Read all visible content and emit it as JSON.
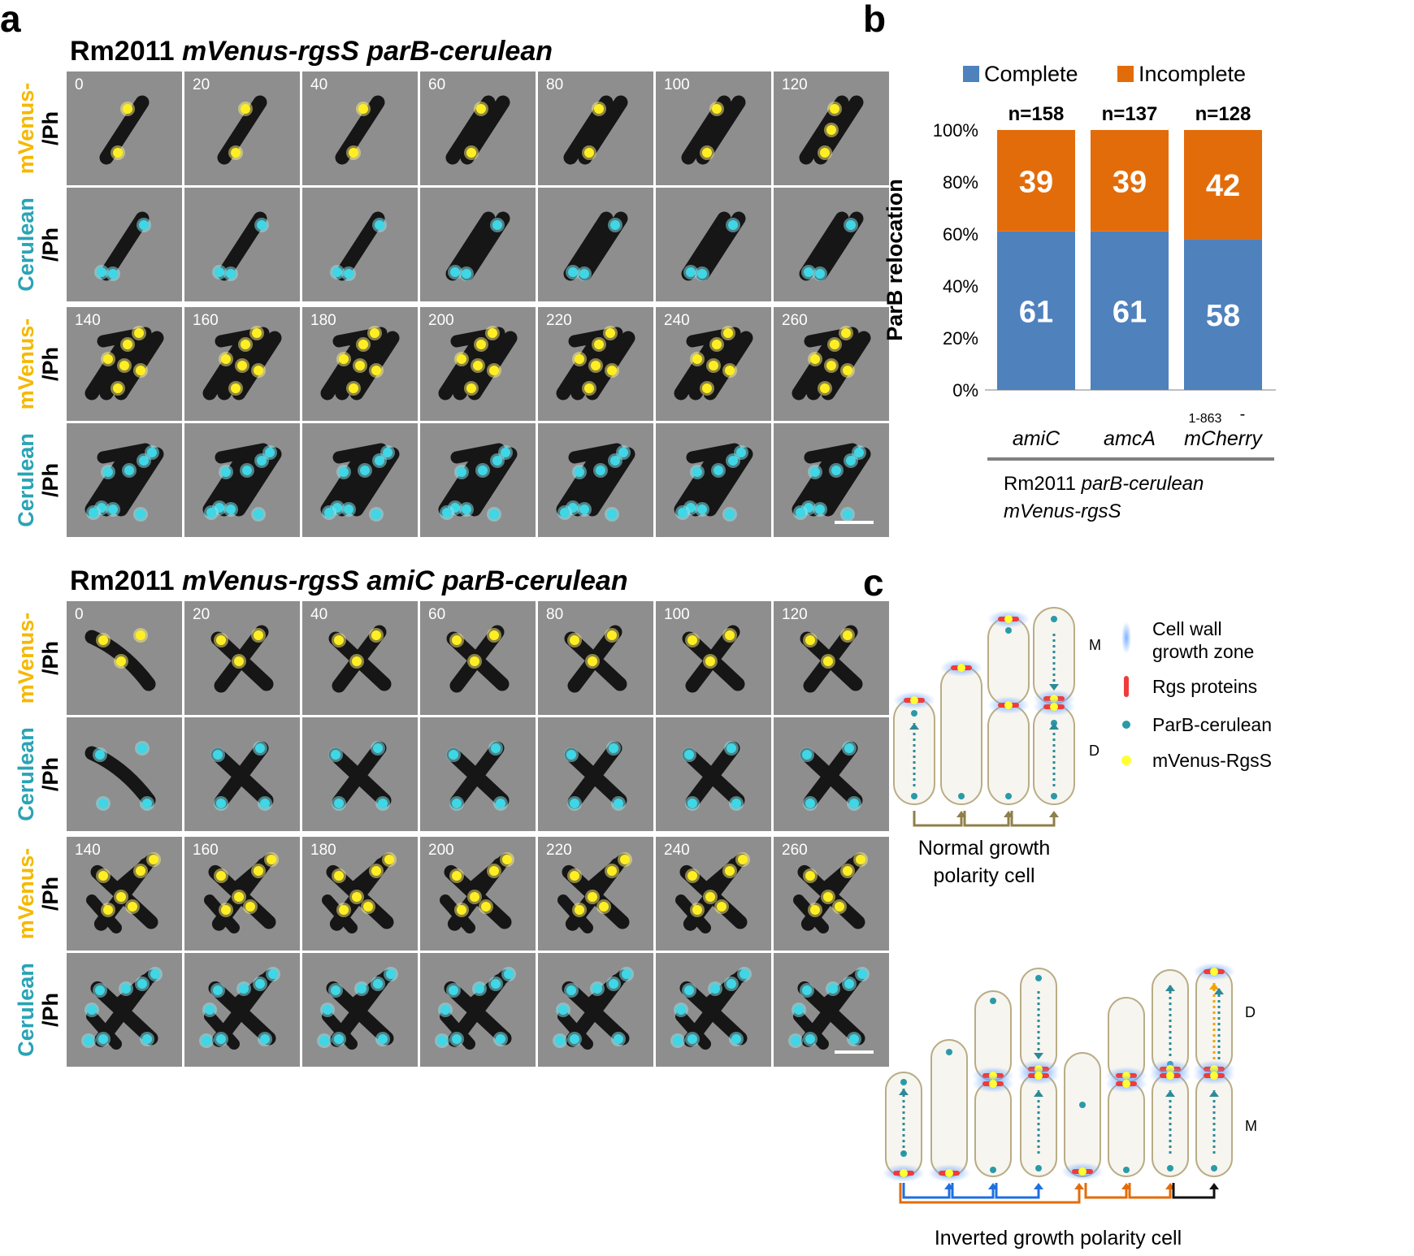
{
  "panel_a": {
    "letter": "a",
    "blocks": [
      {
        "title_plain": "Rm2011 ",
        "title_italic": "mVenus-rgsS parB-cerulean",
        "times_top": [
          "0",
          "20",
          "40",
          "60",
          "80",
          "100",
          "120"
        ],
        "times_bottom": [
          "140",
          "160",
          "180",
          "200",
          "220",
          "240",
          "260"
        ]
      },
      {
        "title_plain": "Rm2011 ",
        "title_italic": "mVenus-rgsS amiC parB-cerulean",
        "times_top": [
          "0",
          "20",
          "40",
          "60",
          "80",
          "100",
          "120"
        ],
        "times_bottom": [
          "140",
          "160",
          "180",
          "200",
          "220",
          "240",
          "260"
        ]
      }
    ],
    "row_labels": {
      "mvenus_line1": "mVenus-",
      "mvenus_line2": "/Ph",
      "cerulean_line1": "Cerulean",
      "cerulean_line2": "/Ph"
    }
  },
  "panel_b": {
    "letter": "b",
    "legend": [
      {
        "label": "Complete",
        "color": "#4f81bd"
      },
      {
        "label": "Incomplete",
        "color": "#e36c0a"
      }
    ],
    "ylabel": "ParB relocation",
    "yticks": [
      "100%",
      "80%",
      "60%",
      "40%",
      "20%",
      "0%"
    ],
    "bars": [
      {
        "n_label": "n=158",
        "complete_label": "61",
        "incomplete_label": "39"
      },
      {
        "n_label": "n=137",
        "complete_label": "61",
        "incomplete_label": "39"
      },
      {
        "n_label": "n=128",
        "complete_label": "58",
        "incomplete_label": "42"
      }
    ],
    "xlabels": [
      {
        "text": "amiC"
      },
      {
        "text": "amcA"
      },
      {
        "text": "mCherry",
        "superscript": "1-863",
        "dash": "-"
      }
    ],
    "group_line1_plain": "Rm2011 ",
    "group_line1_italic": "parB-cerulean",
    "group_line2_italic": "mVenus-rgsS"
  },
  "chart_data": {
    "type": "bar",
    "stacked": true,
    "categories": [
      "amiC",
      "amcA",
      "mCherry"
    ],
    "series": [
      {
        "name": "Complete",
        "values": [
          61,
          61,
          58
        ],
        "color": "#4f81bd"
      },
      {
        "name": "Incomplete",
        "values": [
          39,
          39,
          42
        ],
        "color": "#e36c0a"
      }
    ],
    "n": [
      "n=158",
      "n=137",
      "n=128"
    ],
    "ylabel": "ParB relocation",
    "ylim": [
      0,
      100
    ],
    "yticks": [
      "0%",
      "20%",
      "40%",
      "60%",
      "80%",
      "100%"
    ],
    "legend_position": "top",
    "grid": false
  },
  "panel_c": {
    "letter": "c",
    "legend": [
      {
        "label_line1": "Cell wall",
        "label_line2": "growth zone",
        "icon": "blue-halo-icon"
      },
      {
        "label_line1": "Rgs proteins",
        "label_line2": "",
        "icon": "red-bar-icon"
      },
      {
        "label_line1": "ParB-cerulean",
        "label_line2": "",
        "icon": "cyan-dot-icon"
      },
      {
        "label_line1": "mVenus-RgsS",
        "label_line2": "",
        "icon": "yellow-dot-icon"
      }
    ],
    "normal_caption_line1": "Normal growth",
    "normal_caption_line2": "polarity cell",
    "normal_M": "M",
    "normal_D": "D",
    "inverted_caption": "Inverted growth polarity cell",
    "inverted_D": "D",
    "inverted_M": "M"
  }
}
